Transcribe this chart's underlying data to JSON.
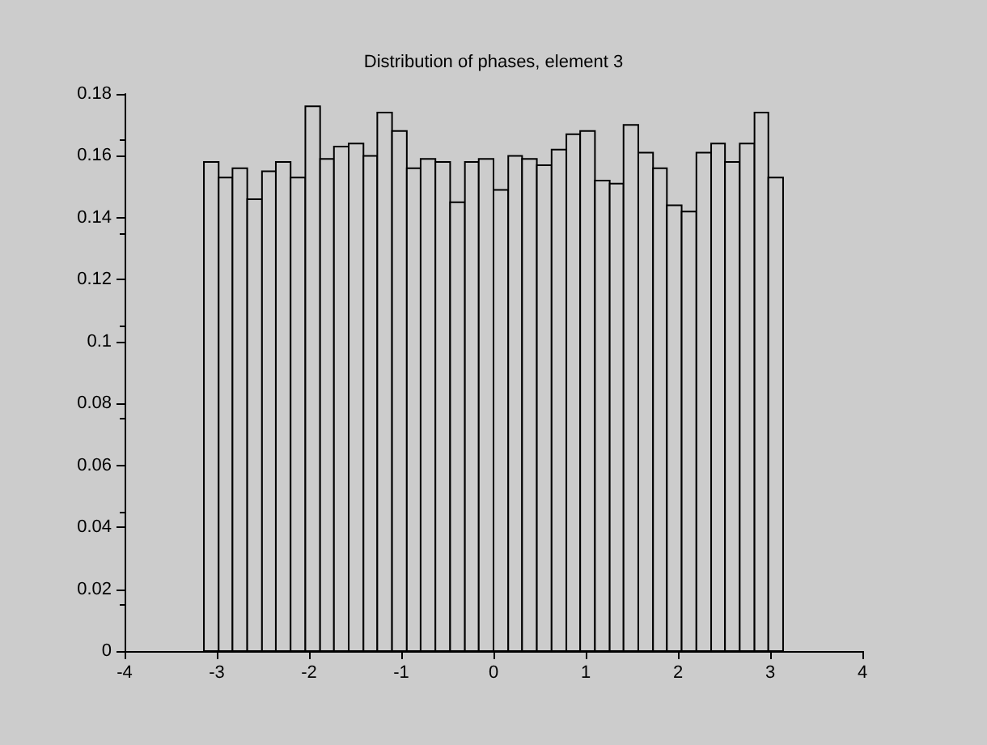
{
  "chart_data": {
    "type": "histogram",
    "title": "Distribution of phases, element 3",
    "bins": [
      -3.14,
      -2.98,
      -2.83,
      -2.67,
      -2.51,
      -2.36,
      -2.2,
      -2.04,
      -1.88,
      -1.73,
      -1.57,
      -1.41,
      -1.26,
      -1.1,
      -0.94,
      -0.79,
      -0.63,
      -0.47,
      -0.31,
      -0.16,
      0,
      0.16,
      0.31,
      0.47,
      0.63,
      0.79,
      0.94,
      1.1,
      1.26,
      1.41,
      1.57,
      1.73,
      1.88,
      2.04,
      2.2,
      2.36,
      2.51,
      2.67,
      2.83,
      2.98,
      3.14
    ],
    "values": [
      0.158,
      0.153,
      0.156,
      0.146,
      0.155,
      0.158,
      0.153,
      0.176,
      0.159,
      0.163,
      0.164,
      0.16,
      0.174,
      0.168,
      0.156,
      0.159,
      0.158,
      0.145,
      0.158,
      0.159,
      0.149,
      0.16,
      0.159,
      0.157,
      0.162,
      0.167,
      0.168,
      0.152,
      0.151,
      0.17,
      0.161,
      0.156,
      0.144,
      0.142,
      0.161,
      0.164,
      0.158,
      0.164,
      0.174,
      0.153
    ],
    "color": "#cccccc",
    "xlim": [
      -4,
      4
    ],
    "xticks": [
      -4,
      -3,
      -2,
      -1,
      0,
      1,
      2,
      3,
      4
    ],
    "ylim": [
      0,
      0.18
    ],
    "yticks": [
      0,
      0.02,
      0.04,
      0.06,
      0.08,
      0.1,
      0.12,
      0.14,
      0.16,
      0.18
    ],
    "grid": false
  }
}
